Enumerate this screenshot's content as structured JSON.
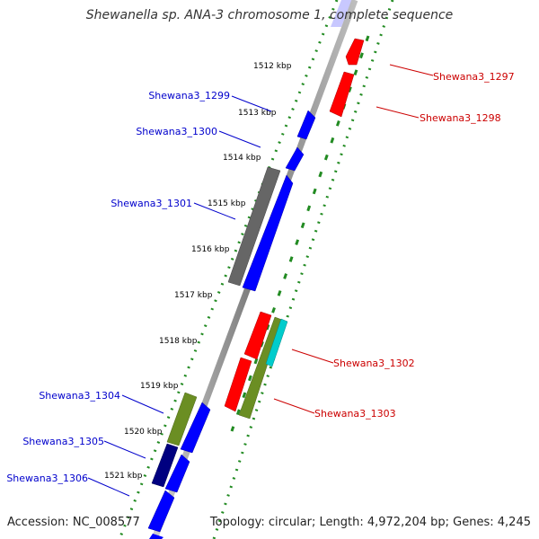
{
  "title": "Shewanella sp. ANA-3 chromosome 1, complete sequence",
  "accession": "Accession: NC_008577",
  "topology": "Topology: circular; Length: 4,972,204 bp; Genes: 4,245",
  "colors": {
    "forward": "#0000ff",
    "reverse": "#ff0000",
    "label_forward": "#0000cc",
    "label_reverse": "#cc0000",
    "backbone": "#888888",
    "grey_feature": "#666666",
    "olive_feature": "#6b8e23",
    "navy_feature": "#000080",
    "cyan_feature": "#00cccc",
    "tick": "#228b22"
  },
  "ticks": [
    "1512 kbp",
    "1513 kbp",
    "1514 kbp",
    "1515 kbp",
    "1516 kbp",
    "1517 kbp",
    "1518 kbp",
    "1519 kbp",
    "1520 kbp",
    "1521 kbp"
  ],
  "genes": [
    {
      "name": "Shewana3_1297",
      "strand": "reverse"
    },
    {
      "name": "Shewana3_1298",
      "strand": "reverse"
    },
    {
      "name": "Shewana3_1299",
      "strand": "forward"
    },
    {
      "name": "Shewana3_1300",
      "strand": "forward"
    },
    {
      "name": "Shewana3_1301",
      "strand": "forward"
    },
    {
      "name": "Shewana3_1302",
      "strand": "reverse"
    },
    {
      "name": "Shewana3_1303",
      "strand": "reverse"
    },
    {
      "name": "Shewana3_1304",
      "strand": "forward"
    },
    {
      "name": "Shewana3_1305",
      "strand": "forward"
    },
    {
      "name": "Shewana3_1306",
      "strand": "forward"
    }
  ]
}
